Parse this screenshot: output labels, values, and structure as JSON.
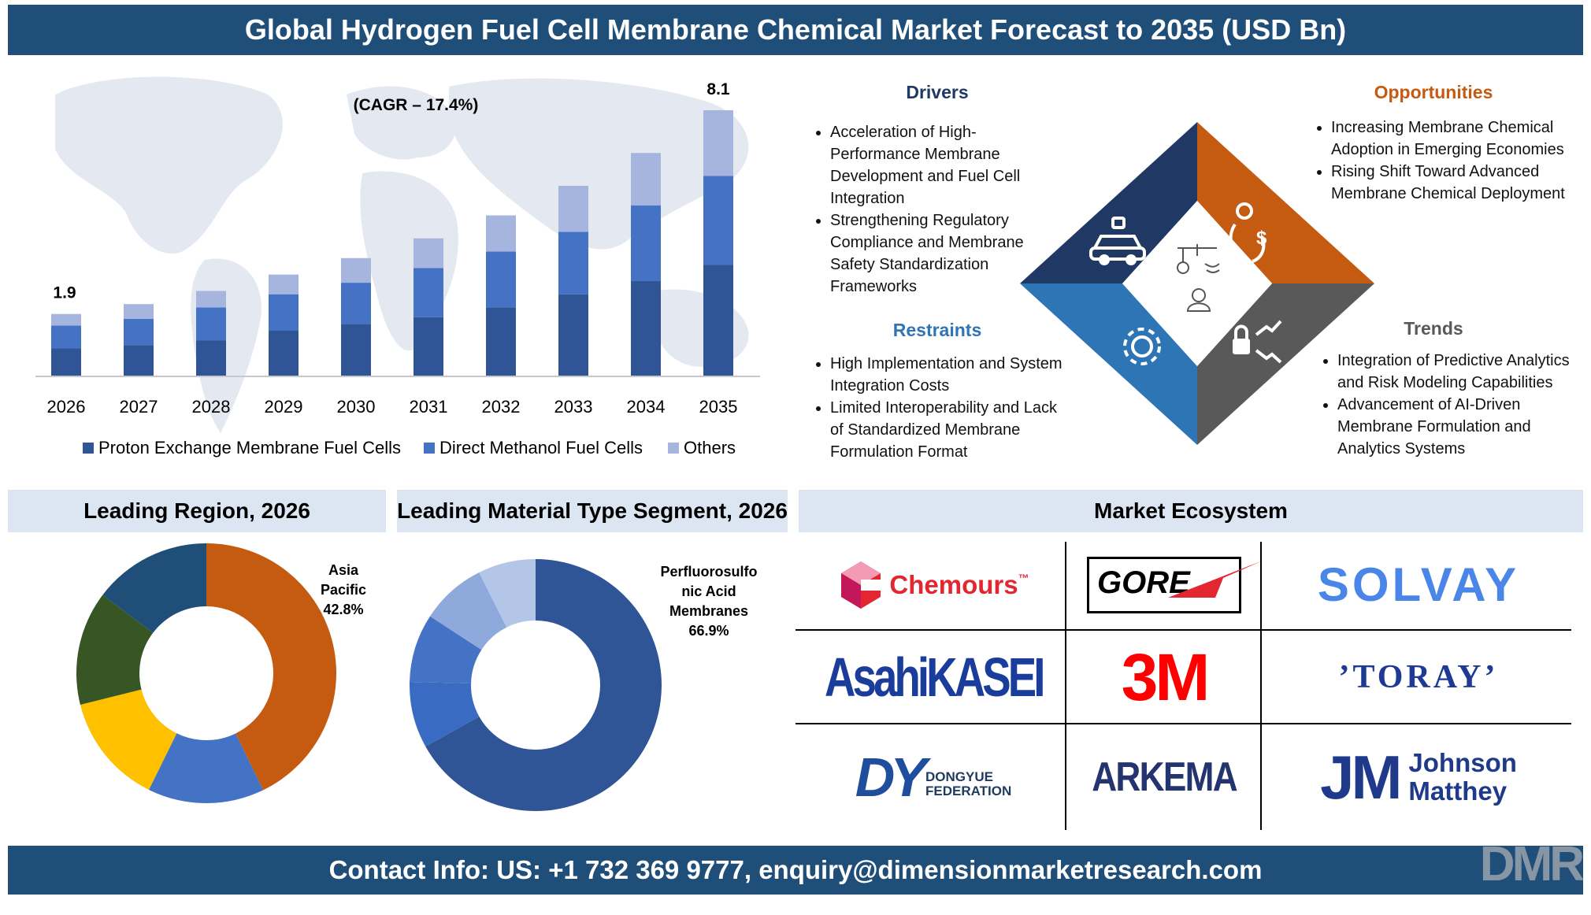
{
  "title": "Global Hydrogen Fuel Cell Membrane Chemical Market Forecast to 2035 (USD Bn)",
  "footer": "Contact Info: US: +1 732 369 9777, enquiry@dimensionmarketresearch.com",
  "brand_logo": "DMR",
  "colors": {
    "band": "#1f4e79",
    "bar_dark": "#2f5597",
    "bar_mid": "#4472c4",
    "bar_light": "#a5b5de",
    "drivers": "#1f3864",
    "opportunities": "#c55a11",
    "restraints": "#2e75b6",
    "trends": "#595959"
  },
  "chart_data": [
    {
      "type": "bar",
      "stacked": true,
      "annotation": "(CAGR – 17.4%)",
      "categories": [
        "2026",
        "2027",
        "2028",
        "2029",
        "2030",
        "2031",
        "2032",
        "2033",
        "2034",
        "2035"
      ],
      "totals": [
        1.9,
        2.2,
        2.6,
        3.1,
        3.6,
        4.2,
        4.9,
        5.8,
        6.8,
        8.1
      ],
      "total_labels": {
        "first": "1.9",
        "last": "8.1"
      },
      "series": [
        {
          "name": "Proton Exchange Membrane Fuel Cells",
          "color": "#2f5597",
          "values": [
            0.85,
            0.95,
            1.1,
            1.4,
            1.6,
            1.8,
            2.1,
            2.5,
            2.9,
            3.4
          ]
        },
        {
          "name": "Direct Methanol Fuel Cells",
          "color": "#4472c4",
          "values": [
            0.7,
            0.8,
            1.0,
            1.1,
            1.25,
            1.5,
            1.7,
            1.9,
            2.3,
            2.7
          ]
        },
        {
          "name": "Others",
          "color": "#a5b5de",
          "values": [
            0.35,
            0.45,
            0.5,
            0.6,
            0.75,
            0.9,
            1.1,
            1.4,
            1.6,
            2.0
          ]
        }
      ],
      "ylim": [
        0,
        8.1
      ],
      "grid": false,
      "legend_position": "bottom"
    },
    {
      "type": "pie",
      "donut": true,
      "heading": "Leading Region, 2026",
      "label": "Asia Pacific 42.8%",
      "label_lines": [
        "Asia",
        "Pacific",
        "42.8%"
      ],
      "slices": [
        {
          "value": 42.8,
          "color": "#c55a11"
        },
        {
          "value": 14.5,
          "color": "#4472c4"
        },
        {
          "value": 13.8,
          "color": "#ffc000"
        },
        {
          "value": 14.2,
          "color": "#375623"
        },
        {
          "value": 14.7,
          "color": "#1f4e79"
        }
      ]
    },
    {
      "type": "pie",
      "donut": true,
      "heading": "Leading Material Type Segment, 2026",
      "label": "Perfluorosulfonic Acid Membranes 66.9%",
      "label_lines": [
        "Perfluorosulfo",
        "nic Acid",
        "Membranes",
        "66.9%"
      ],
      "slices": [
        {
          "value": 66.9,
          "color": "#2f5597"
        },
        {
          "value": 8.5,
          "color": "#3a6bc2"
        },
        {
          "value": 8.8,
          "color": "#4472c4"
        },
        {
          "value": 8.4,
          "color": "#8ea9db"
        },
        {
          "value": 7.4,
          "color": "#b4c6e7"
        }
      ]
    }
  ],
  "dynamics": {
    "drivers": {
      "title": "Drivers",
      "items": [
        "Acceleration of High-Performance Membrane Development and Fuel Cell Integration",
        "Strengthening Regulatory Compliance and Membrane Safety Standardization Frameworks"
      ]
    },
    "opportunities": {
      "title": "Opportunities",
      "items": [
        "Increasing Membrane Chemical Adoption in Emerging Economies",
        "Rising Shift Toward Advanced Membrane Chemical Deployment"
      ]
    },
    "restraints": {
      "title": "Restraints",
      "items": [
        "High Implementation and System Integration Costs",
        "Limited Interoperability and Lack of Standardized Membrane Formulation Format"
      ]
    },
    "trends": {
      "title": "Trends",
      "items": [
        "Integration of Predictive Analytics and Risk Modeling Capabilities",
        "Advancement of AI-Driven Membrane Formulation and Analytics Systems"
      ]
    },
    "icons": [
      "car-robot-icon",
      "dollar-exchange-icon",
      "gear-network-icon",
      "lock-trend-icon",
      "person-idea-icon"
    ]
  },
  "ecosystem": {
    "heading": "Market Ecosystem",
    "logos": [
      {
        "name": "Chemours",
        "text": "Chemours",
        "mark": "™",
        "color": "#e3262f"
      },
      {
        "name": "Gore",
        "text": "GORE",
        "color": "#000000"
      },
      {
        "name": "Solvay",
        "text": "SOLVAY",
        "color": "#4a86e8"
      },
      {
        "name": "Asahi Kasei",
        "text": "AsahiKASEI",
        "color": "#1a3d9b"
      },
      {
        "name": "3M",
        "text": "3M",
        "color": "#ff0000"
      },
      {
        "name": "Toray",
        "text": "’TORAY’",
        "color": "#1f3a93"
      },
      {
        "name": "Dongyue Federation",
        "text_main": "DY",
        "text_sub1": "DONGYUE",
        "text_sub2": "FEDERATION",
        "color": "#1f4e9c"
      },
      {
        "name": "Arkema",
        "text": "ARKEMA",
        "color": "#23346e"
      },
      {
        "name": "Johnson Matthey",
        "text_main": "JM",
        "text_sub1": "Johnson",
        "text_sub2": "Matthey",
        "color": "#1f3a8a"
      }
    ]
  }
}
